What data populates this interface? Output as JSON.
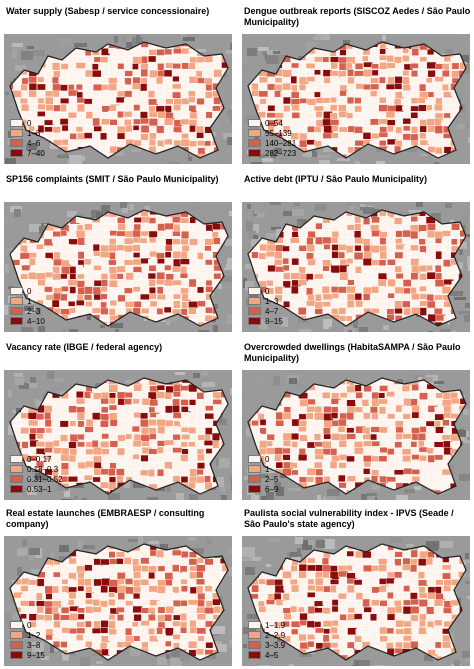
{
  "panels": [
    {
      "title": "Water supply (Sabesp / service concessionaire)",
      "legend": [
        {
          "label": "0",
          "color": "#fff3ee"
        },
        {
          "label": "1–3",
          "color": "#f4a582"
        },
        {
          "label": "4–6",
          "color": "#d6604d"
        },
        {
          "label": "7–40",
          "color": "#8b0a0a"
        }
      ]
    },
    {
      "title": "Dengue outbreak reports (SISCOZ Aedes / São Paulo Municipality)",
      "legend": [
        {
          "label": "0–54",
          "color": "#fff3ee"
        },
        {
          "label": "55–139",
          "color": "#f4a582"
        },
        {
          "label": "140–281",
          "color": "#d6604d"
        },
        {
          "label": "282–723",
          "color": "#8b0a0a"
        }
      ]
    },
    {
      "title": "SP156 complaints (SMIT / São Paulo Municipality)",
      "legend": [
        {
          "label": "0",
          "color": "#fff3ee"
        },
        {
          "label": "1",
          "color": "#f4a582"
        },
        {
          "label": "2–3",
          "color": "#d6604d"
        },
        {
          "label": "4–10",
          "color": "#8b0a0a"
        }
      ]
    },
    {
      "title": "Active debt (IPTU / São Paulo Municipality)",
      "legend": [
        {
          "label": "0",
          "color": "#fff3ee"
        },
        {
          "label": "1–3",
          "color": "#f4a582"
        },
        {
          "label": "4–7",
          "color": "#d6604d"
        },
        {
          "label": "8–15",
          "color": "#8b0a0a"
        }
      ]
    },
    {
      "title": "Vacancy rate (IBGE / federal agency)",
      "legend": [
        {
          "label": "0–0.17",
          "color": "#fff3ee"
        },
        {
          "label": "0.18–0.3",
          "color": "#f4a582"
        },
        {
          "label": "0.31–0.52",
          "color": "#d6604d"
        },
        {
          "label": "0.53–1",
          "color": "#8b0a0a"
        }
      ]
    },
    {
      "title": "Overcrowded dwellings (HabitaSAMPA / São Paulo Municipality)",
      "legend": [
        {
          "label": "0",
          "color": "#fff3ee"
        },
        {
          "label": "1",
          "color": "#f4a582"
        },
        {
          "label": "2–5",
          "color": "#d6604d"
        },
        {
          "label": "6–9",
          "color": "#8b0a0a"
        }
      ]
    },
    {
      "title": "Real estate launches (EMBRAESP / consulting company)",
      "legend": [
        {
          "label": "0",
          "color": "#fff3ee"
        },
        {
          "label": "1–2",
          "color": "#f4a582"
        },
        {
          "label": "3–8",
          "color": "#d6604d"
        },
        {
          "label": "9–15",
          "color": "#8b0a0a"
        }
      ]
    },
    {
      "title": "Paulista social vulnerability index - IPVS (Seade / São Paulo's state agency)",
      "legend": [
        {
          "label": "1–1.9",
          "color": "#fff3ee"
        },
        {
          "label": "2–2.9",
          "color": "#f4a582"
        },
        {
          "label": "3–3.9",
          "color": "#d6604d"
        },
        {
          "label": "4–5",
          "color": "#8b0a0a"
        }
      ]
    }
  ]
}
